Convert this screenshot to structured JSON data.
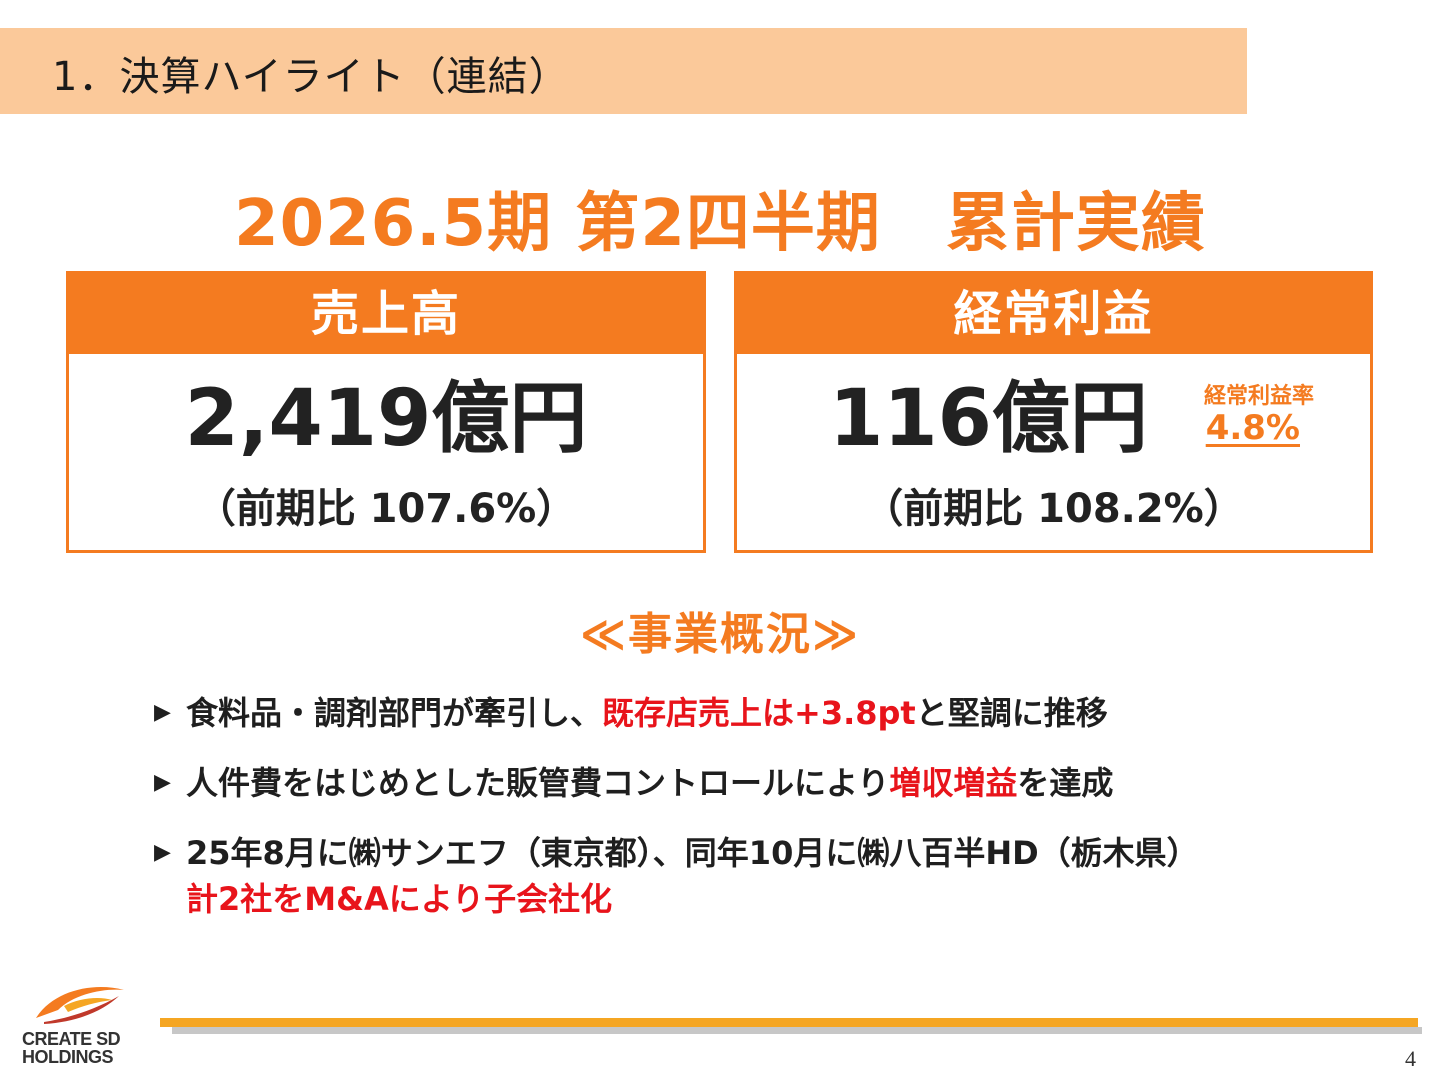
{
  "header": {
    "section_title": "1．決算ハイライト（連結）",
    "band_color": "#fbc99a"
  },
  "main_heading": "2026.5期 第2四半期　累計実績",
  "kpis": {
    "sales": {
      "label": "売上高",
      "value": "2,419億円",
      "yoy": "（前期比 107.6%）"
    },
    "ordinary_profit": {
      "label": "経常利益",
      "value": "116億円",
      "yoy": "（前期比 108.2%）",
      "ratio_label": "経常利益率",
      "ratio_value": "4.8%"
    }
  },
  "overview": {
    "title": "≪事業概況≫",
    "bullets": [
      {
        "prefix": "食料品・調剤部門が牽引し、",
        "highlight": "既存店売上は+3.8pt",
        "suffix": "と堅調に推移"
      },
      {
        "prefix": "人件費をはじめとした販管費コントロールにより",
        "highlight": "増収増益",
        "suffix": "を達成"
      },
      {
        "line1": "25年8月に㈱サンエフ（東京都）、同年10月に㈱八百半HD（栃木県）",
        "highlight": "計2社をM&Aにより子会社化"
      }
    ]
  },
  "footer": {
    "logo_line1": "CREATE SD",
    "logo_line2": "HOLDINGS",
    "page_number": "4"
  },
  "colors": {
    "accent_orange": "#f47b20",
    "highlight_red": "#e8141b",
    "footer_orange": "#f5a623",
    "footer_gray": "#c7c7c7"
  }
}
